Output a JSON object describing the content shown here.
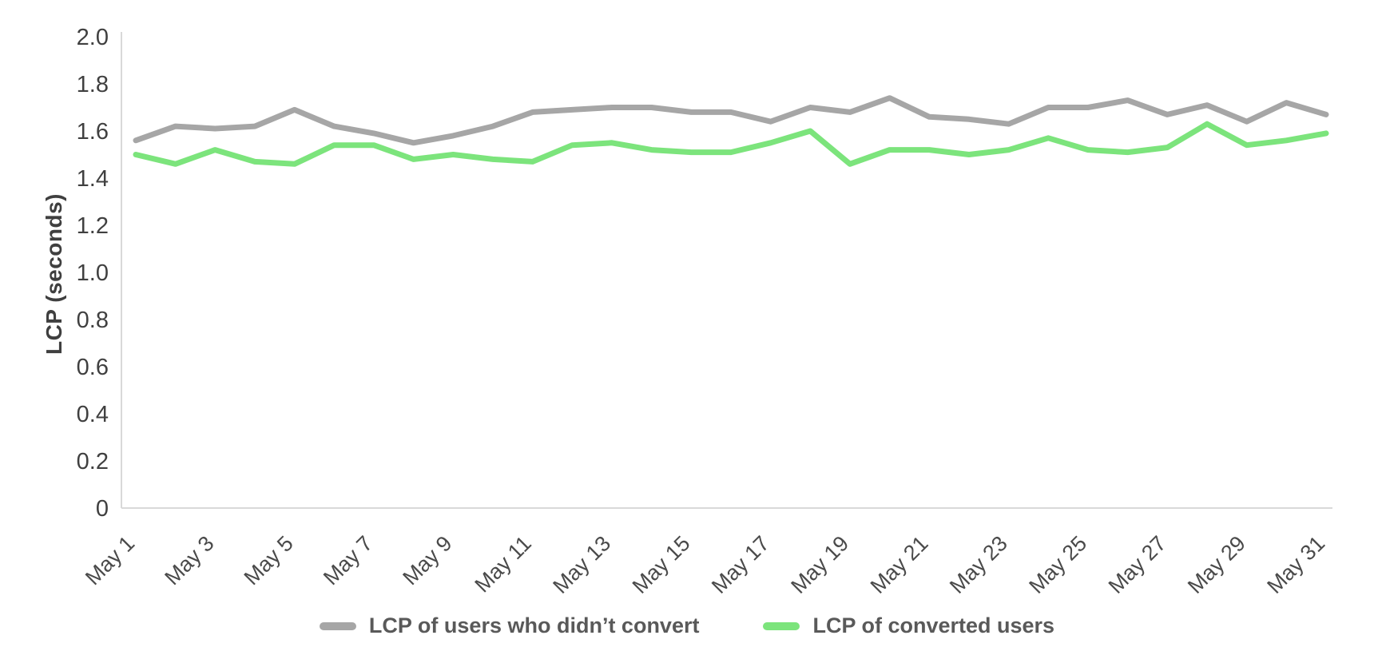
{
  "chart_data": {
    "type": "line",
    "title": "",
    "xlabel": "",
    "ylabel": "LCP (seconds)",
    "ylim": [
      0,
      2.0
    ],
    "y_ticks": [
      "0",
      "0.2",
      "0.4",
      "0.6",
      "0.8",
      "1.0",
      "1.2",
      "1.4",
      "1.6",
      "1.8",
      "2.0"
    ],
    "grid": false,
    "legend_position": "bottom",
    "categories": [
      "May 1",
      "May 2",
      "May 3",
      "May 4",
      "May 5",
      "May 6",
      "May 7",
      "May 8",
      "May 9",
      "May 10",
      "May 11",
      "May 12",
      "May 13",
      "May 14",
      "May 15",
      "May 16",
      "May 17",
      "May 18",
      "May 19",
      "May 20",
      "May 21",
      "May 22",
      "May 23",
      "May 24",
      "May 25",
      "May 26",
      "May 27",
      "May 28",
      "May 29",
      "May 30",
      "May 31"
    ],
    "x_tick_labels": [
      "May 1",
      "May 3",
      "May 5",
      "May 7",
      "May 9",
      "May 11",
      "May 13",
      "May 15",
      "May 17",
      "May 19",
      "May 21",
      "May 23",
      "May 25",
      "May 27",
      "May 29",
      "May 31"
    ],
    "series": [
      {
        "name": "LCP of users who didn’t convert",
        "color": "#A6A6A6",
        "values": [
          1.56,
          1.62,
          1.61,
          1.62,
          1.69,
          1.62,
          1.59,
          1.55,
          1.58,
          1.62,
          1.68,
          1.69,
          1.7,
          1.7,
          1.68,
          1.68,
          1.64,
          1.7,
          1.68,
          1.74,
          1.66,
          1.65,
          1.63,
          1.7,
          1.7,
          1.73,
          1.67,
          1.71,
          1.64,
          1.72,
          1.67
        ]
      },
      {
        "name": "LCP of converted users",
        "color": "#7CE47C",
        "values": [
          1.5,
          1.46,
          1.52,
          1.47,
          1.46,
          1.54,
          1.54,
          1.48,
          1.5,
          1.48,
          1.47,
          1.54,
          1.55,
          1.52,
          1.51,
          1.51,
          1.55,
          1.6,
          1.46,
          1.52,
          1.52,
          1.5,
          1.52,
          1.57,
          1.52,
          1.51,
          1.53,
          1.63,
          1.54,
          1.56,
          1.59
        ]
      }
    ]
  },
  "colors": {
    "axis_line": "#D9D9D9",
    "tick_text": "#404040",
    "x_label_text": "#4a4a4a",
    "legend_text": "#595959"
  }
}
